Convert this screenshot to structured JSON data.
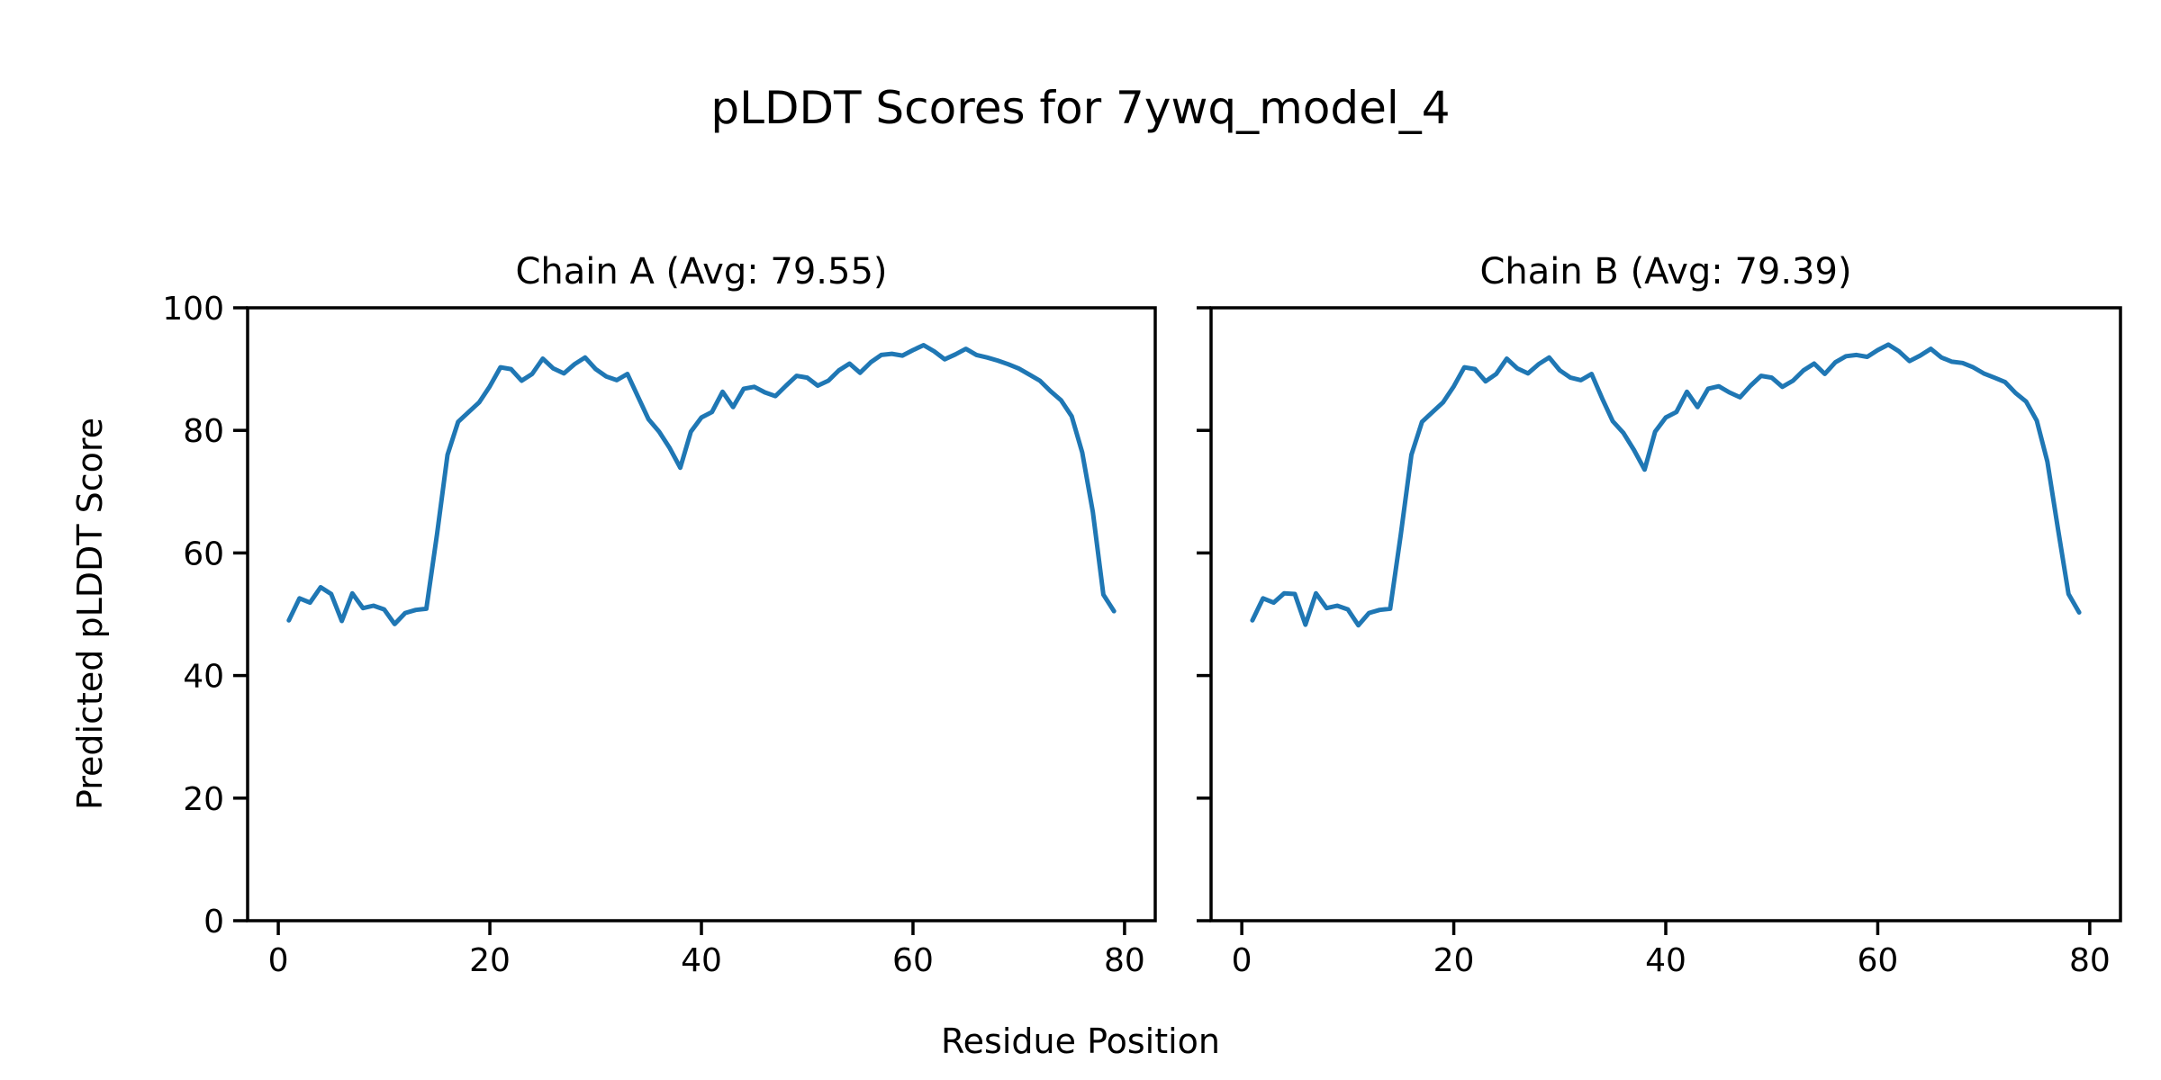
{
  "figure": {
    "title": "pLDDT Scores for 7ywq_model_4",
    "xlabel": "Residue Position",
    "ylabel": "Predicted pLDDT Score",
    "line_color": "#1f77b4",
    "text_color": "#000000",
    "background_color": "#ffffff",
    "grid": false,
    "legend": "none"
  },
  "chart_data": [
    {
      "type": "line",
      "title": "Chain A (Avg: 79.55)",
      "chain": "A",
      "avg": 79.55,
      "xlabel": "Residue Position",
      "ylabel": "Predicted pLDDT Score",
      "x_first": 1,
      "x_step": 1,
      "n_points": 79,
      "xlim": [
        -2.9,
        82.9
      ],
      "ylim": [
        0,
        100
      ],
      "xticks": [
        0,
        20,
        40,
        60,
        80
      ],
      "yticks": [
        0,
        20,
        40,
        60,
        80,
        100
      ],
      "y_tick_labels_visible": true,
      "values": [
        49.0,
        52.6,
        51.9,
        54.4,
        53.3,
        48.9,
        53.4,
        51.0,
        51.4,
        50.8,
        48.4,
        50.2,
        50.7,
        50.9,
        63.0,
        76.0,
        81.4,
        83.0,
        84.6,
        87.2,
        90.3,
        90.0,
        88.1,
        89.2,
        91.7,
        90.1,
        89.3,
        90.8,
        91.9,
        90.0,
        88.8,
        88.2,
        89.2,
        85.5,
        81.8,
        79.8,
        77.1,
        73.9,
        79.8,
        82.1,
        83.0,
        86.3,
        83.8,
        86.8,
        87.1,
        86.2,
        85.6,
        87.3,
        88.9,
        88.6,
        87.3,
        88.1,
        89.8,
        90.9,
        89.4,
        91.1,
        92.3,
        92.5,
        92.2,
        93.1,
        93.9,
        92.9,
        91.6,
        92.4,
        93.3,
        92.3,
        91.9,
        91.4,
        90.8,
        90.1,
        89.1,
        88.1,
        86.4,
        84.9,
        82.3,
        76.4,
        66.7,
        53.2,
        50.5
      ]
    },
    {
      "type": "line",
      "title": "Chain B (Avg: 79.39)",
      "chain": "B",
      "avg": 79.39,
      "xlabel": "Residue Position",
      "ylabel": "Predicted pLDDT Score",
      "x_first": 1,
      "x_step": 1,
      "n_points": 79,
      "xlim": [
        -2.9,
        82.9
      ],
      "ylim": [
        0,
        100
      ],
      "xticks": [
        0,
        20,
        40,
        60,
        80
      ],
      "yticks": [
        0,
        20,
        40,
        60,
        80,
        100
      ],
      "y_tick_labels_visible": false,
      "values": [
        49.0,
        52.6,
        51.9,
        53.4,
        53.3,
        48.3,
        53.4,
        51.0,
        51.4,
        50.8,
        48.2,
        50.2,
        50.7,
        50.9,
        63.0,
        76.0,
        81.4,
        83.0,
        84.6,
        87.2,
        90.3,
        90.0,
        88.0,
        89.2,
        91.7,
        90.1,
        89.3,
        90.8,
        91.9,
        89.8,
        88.6,
        88.2,
        89.2,
        85.2,
        81.5,
        79.6,
        76.8,
        73.6,
        79.8,
        82.1,
        83.0,
        86.3,
        83.8,
        86.8,
        87.2,
        86.2,
        85.4,
        87.3,
        88.9,
        88.6,
        87.1,
        88.1,
        89.8,
        90.9,
        89.2,
        91.1,
        92.1,
        92.3,
        92.0,
        93.1,
        94.0,
        92.9,
        91.3,
        92.2,
        93.3,
        91.9,
        91.2,
        91.0,
        90.3,
        89.3,
        88.6,
        87.9,
        86.1,
        84.7,
        81.6,
        74.9,
        64.0,
        53.3,
        50.3
      ]
    }
  ]
}
